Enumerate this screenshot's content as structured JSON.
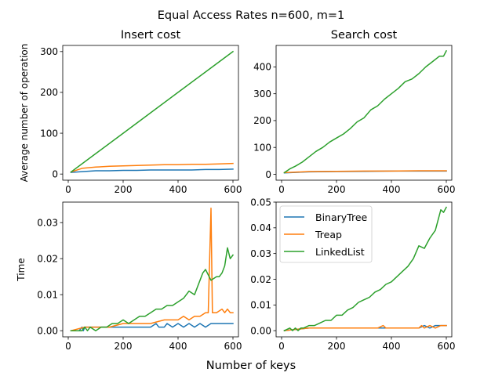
{
  "figure": {
    "suptitle": "Equal Access Rates n=600, m=1",
    "supxlabel": "Number of keys"
  },
  "colors": {
    "BinaryTree": "#1f77b4",
    "Treap": "#ff7f0e",
    "LinkedList": "#2ca02c"
  },
  "chart_data": [
    {
      "type": "line",
      "title": "Insert cost",
      "xlabel": "",
      "ylabel": "Average number of operation",
      "xlim": [
        -20,
        620
      ],
      "ylim": [
        -15,
        315
      ],
      "xticks": [
        0,
        200,
        400,
        600
      ],
      "xtick_labels": [
        "0",
        "200",
        "400",
        "600"
      ],
      "yticks": [
        0,
        100,
        200,
        300
      ],
      "ytick_labels": [
        "0",
        "100",
        "200",
        "300"
      ],
      "grid": false,
      "series": [
        {
          "name": "BinaryTree",
          "x": [
            10,
            50,
            100,
            150,
            200,
            250,
            300,
            350,
            400,
            450,
            500,
            550,
            600
          ],
          "y": [
            4,
            6,
            8,
            8,
            9,
            9,
            10,
            10,
            10,
            10,
            11,
            11,
            12
          ]
        },
        {
          "name": "Treap",
          "x": [
            10,
            50,
            100,
            150,
            200,
            250,
            300,
            350,
            400,
            450,
            500,
            550,
            600
          ],
          "y": [
            5,
            14,
            17,
            19,
            20,
            21,
            22,
            23,
            23,
            24,
            24,
            25,
            26
          ]
        },
        {
          "name": "LinkedList",
          "x": [
            10,
            100,
            200,
            300,
            400,
            500,
            600
          ],
          "y": [
            5,
            50,
            100,
            150,
            200,
            250,
            300
          ]
        }
      ]
    },
    {
      "type": "line",
      "title": "Search cost",
      "xlabel": "",
      "ylabel": "",
      "xlim": [
        -20,
        620
      ],
      "ylim": [
        -22,
        480
      ],
      "xticks": [
        0,
        200,
        400,
        600
      ],
      "xtick_labels": [
        "0",
        "200",
        "400",
        "600"
      ],
      "yticks": [
        0,
        100,
        200,
        300,
        400
      ],
      "ytick_labels": [
        "0",
        "100",
        "200",
        "300",
        "400"
      ],
      "grid": false,
      "series": [
        {
          "name": "BinaryTree",
          "x": [
            10,
            100,
            200,
            300,
            400,
            500,
            600
          ],
          "y": [
            5,
            9,
            10,
            11,
            12,
            12,
            12
          ]
        },
        {
          "name": "Treap",
          "x": [
            10,
            100,
            200,
            300,
            400,
            500,
            600
          ],
          "y": [
            6,
            10,
            11,
            12,
            12,
            13,
            13
          ]
        },
        {
          "name": "LinkedList",
          "x": [
            10,
            30,
            50,
            75,
            100,
            125,
            150,
            175,
            200,
            225,
            250,
            275,
            300,
            325,
            350,
            375,
            400,
            425,
            450,
            475,
            500,
            525,
            550,
            575,
            590,
            600
          ],
          "y": [
            6,
            20,
            30,
            45,
            65,
            85,
            100,
            120,
            135,
            150,
            170,
            195,
            210,
            240,
            255,
            280,
            300,
            320,
            345,
            355,
            375,
            400,
            420,
            440,
            440,
            460
          ]
        }
      ]
    },
    {
      "type": "line",
      "title": "",
      "xlabel": "",
      "ylabel": "Time",
      "xlim": [
        -20,
        620
      ],
      "ylim": [
        -0.0017,
        0.0357
      ],
      "xticks": [
        0,
        200,
        400,
        600
      ],
      "xtick_labels": [
        "0",
        "200",
        "400",
        "600"
      ],
      "yticks": [
        0.0,
        0.01,
        0.02,
        0.03
      ],
      "ytick_labels": [
        "0.00",
        "0.01",
        "0.02",
        "0.03"
      ],
      "grid": false,
      "series": [
        {
          "name": "BinaryTree",
          "x": [
            10,
            40,
            50,
            55,
            60,
            100,
            150,
            200,
            250,
            300,
            320,
            330,
            350,
            360,
            380,
            400,
            420,
            440,
            460,
            480,
            500,
            520,
            540,
            560,
            580,
            600
          ],
          "y": [
            0,
            0,
            0.001,
            0,
            0.001,
            0.001,
            0.001,
            0.001,
            0.001,
            0.001,
            0.002,
            0.001,
            0.001,
            0.002,
            0.001,
            0.002,
            0.001,
            0.002,
            0.001,
            0.002,
            0.001,
            0.002,
            0.002,
            0.002,
            0.002,
            0.002
          ]
        },
        {
          "name": "Treap",
          "x": [
            10,
            60,
            100,
            150,
            200,
            250,
            300,
            350,
            400,
            420,
            440,
            460,
            480,
            500,
            510,
            515,
            520,
            525,
            540,
            560,
            570,
            580,
            590,
            600
          ],
          "y": [
            0,
            0.001,
            0.001,
            0.001,
            0.002,
            0.002,
            0.002,
            0.003,
            0.003,
            0.004,
            0.003,
            0.004,
            0.004,
            0.005,
            0.005,
            0.02,
            0.034,
            0.005,
            0.005,
            0.006,
            0.005,
            0.006,
            0.005,
            0.005
          ]
        },
        {
          "name": "LinkedList",
          "x": [
            10,
            50,
            60,
            70,
            80,
            100,
            120,
            140,
            160,
            180,
            200,
            220,
            240,
            260,
            280,
            300,
            320,
            340,
            360,
            380,
            400,
            420,
            440,
            460,
            480,
            490,
            500,
            520,
            540,
            550,
            560,
            570,
            580,
            590,
            600
          ],
          "y": [
            0,
            0,
            0.001,
            0,
            0.001,
            0,
            0.001,
            0.001,
            0.002,
            0.002,
            0.003,
            0.002,
            0.003,
            0.004,
            0.004,
            0.005,
            0.006,
            0.006,
            0.007,
            0.007,
            0.008,
            0.009,
            0.011,
            0.01,
            0.014,
            0.016,
            0.017,
            0.014,
            0.015,
            0.015,
            0.016,
            0.018,
            0.023,
            0.02,
            0.021
          ]
        }
      ]
    },
    {
      "type": "line",
      "title": "",
      "xlabel": "",
      "ylabel": "",
      "xlim": [
        -20,
        620
      ],
      "ylim": [
        -0.0024,
        0.05
      ],
      "xticks": [
        0,
        200,
        400,
        600
      ],
      "xtick_labels": [
        "0",
        "200",
        "400",
        "600"
      ],
      "yticks": [
        0.0,
        0.01,
        0.02,
        0.03,
        0.04,
        0.05
      ],
      "ytick_labels": [
        "0.00",
        "0.01",
        "0.02",
        "0.03",
        "0.04",
        "0.05"
      ],
      "grid": false,
      "legend": {
        "placement": "upper-left",
        "entries": [
          "BinaryTree",
          "Treap",
          "LinkedList"
        ]
      },
      "series": [
        {
          "name": "BinaryTree",
          "x": [
            10,
            100,
            200,
            300,
            400,
            450,
            500,
            520,
            540,
            560,
            580,
            600
          ],
          "y": [
            0,
            0.001,
            0.001,
            0.001,
            0.001,
            0.001,
            0.001,
            0.002,
            0.001,
            0.002,
            0.002,
            0.002
          ]
        },
        {
          "name": "Treap",
          "x": [
            10,
            100,
            150,
            200,
            250,
            300,
            350,
            370,
            380,
            400,
            450,
            500,
            510,
            520,
            540,
            560,
            580,
            600
          ],
          "y": [
            0,
            0.001,
            0.001,
            0.001,
            0.001,
            0.001,
            0.001,
            0.002,
            0.001,
            0.001,
            0.001,
            0.001,
            0.002,
            0.001,
            0.002,
            0.001,
            0.002,
            0.002
          ]
        },
        {
          "name": "LinkedList",
          "x": [
            10,
            30,
            40,
            50,
            60,
            70,
            80,
            100,
            120,
            140,
            160,
            180,
            200,
            220,
            240,
            260,
            280,
            300,
            320,
            340,
            360,
            380,
            400,
            420,
            440,
            460,
            480,
            500,
            520,
            530,
            540,
            560,
            580,
            590,
            600
          ],
          "y": [
            0,
            0.001,
            0,
            0.001,
            0,
            0.001,
            0.001,
            0.002,
            0.002,
            0.003,
            0.004,
            0.004,
            0.006,
            0.006,
            0.008,
            0.009,
            0.011,
            0.012,
            0.013,
            0.015,
            0.016,
            0.018,
            0.019,
            0.021,
            0.023,
            0.025,
            0.028,
            0.033,
            0.032,
            0.034,
            0.036,
            0.039,
            0.047,
            0.046,
            0.048
          ]
        }
      ]
    }
  ]
}
